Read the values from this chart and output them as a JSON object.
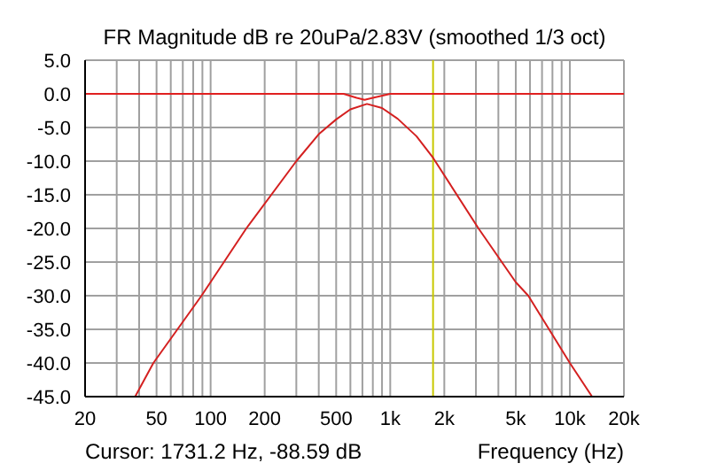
{
  "chart_data": {
    "type": "line",
    "title": "FR Magnitude dB re 20uPa/2.83V (smoothed 1/3 oct)",
    "xlabel": "Frequency (Hz)",
    "annotations": [
      "Cursor: 1731.2 Hz, -88.59 dB"
    ],
    "log": "x",
    "grid": true,
    "marker": "none",
    "line_style": "solid",
    "xlim": [
      20,
      20000
    ],
    "xticks": [
      20,
      {
        "value": 30,
        "label": null
      },
      {
        "value": 40,
        "label": null
      },
      50,
      {
        "value": 60,
        "label": null
      },
      {
        "value": 70,
        "label": null
      },
      {
        "value": 80,
        "label": null
      },
      {
        "value": 90,
        "label": null
      },
      100,
      200,
      {
        "value": 300,
        "label": null
      },
      {
        "value": 400,
        "label": null
      },
      500,
      {
        "value": 600,
        "label": null
      },
      {
        "value": 700,
        "label": null
      },
      {
        "value": 800,
        "label": null
      },
      {
        "value": 900,
        "label": null
      },
      {
        "value": 1000,
        "label": "1k"
      },
      {
        "value": 2000,
        "label": "2k"
      },
      {
        "value": 3000,
        "label": null
      },
      {
        "value": 4000,
        "label": null
      },
      {
        "value": 5000,
        "label": "5k"
      },
      {
        "value": 6000,
        "label": null
      },
      {
        "value": 7000,
        "label": null
      },
      {
        "value": 8000,
        "label": null
      },
      {
        "value": 9000,
        "label": null
      },
      {
        "value": 10000,
        "label": "10k"
      },
      {
        "value": 20000,
        "label": "20k"
      }
    ],
    "ylim": [
      -45,
      5
    ],
    "yticks": [
      {
        "value": 5,
        "label": "5.0"
      },
      {
        "value": 0,
        "label": "0.0"
      },
      {
        "value": -5,
        "label": "-5.0"
      },
      {
        "value": -10,
        "label": "-10.0"
      },
      {
        "value": -15,
        "label": "-15.0"
      },
      {
        "value": -20,
        "label": "-20.0"
      },
      {
        "value": -25,
        "label": "-25.0"
      },
      {
        "value": -30,
        "label": "-30.0"
      },
      {
        "value": -35,
        "label": "-35.0"
      },
      {
        "value": -40,
        "label": "-40.0"
      },
      {
        "value": -45,
        "label": "-45.0"
      }
    ],
    "ref_lines": [
      {
        "axis": "x",
        "value": 1731.2,
        "color": "#c8c800"
      }
    ],
    "series": [
      {
        "color": "#e02020",
        "x": [
          20,
          550,
          650,
          720,
          800,
          1000,
          20000
        ],
        "values": [
          0,
          0,
          -0.6,
          -0.9,
          -0.6,
          0,
          0
        ]
      },
      {
        "color": "#d42020",
        "x": [
          38,
          48,
          89,
          158,
          300,
          400,
          500,
          600,
          742,
          900,
          1100,
          1400,
          1731,
          3100,
          5000,
          5870,
          10000,
          13300
        ],
        "values": [
          -45,
          -40,
          -30,
          -20,
          -10,
          -6,
          -3.8,
          -2.3,
          -1.5,
          -2.1,
          -3.7,
          -6.3,
          -9.5,
          -20,
          -28,
          -30,
          -40,
          -45
        ]
      }
    ]
  }
}
